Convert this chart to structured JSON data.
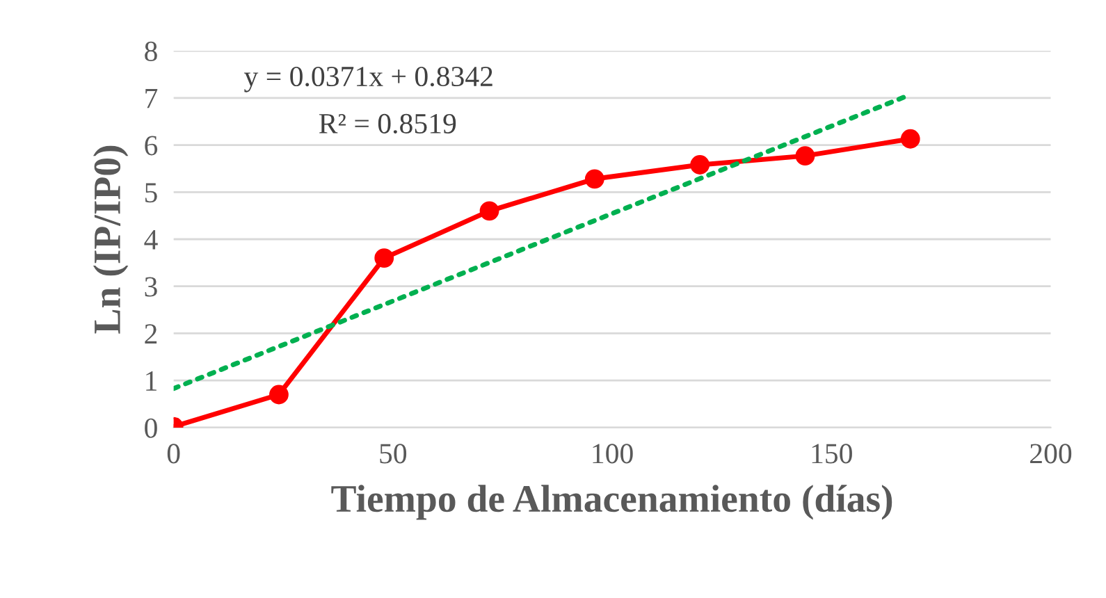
{
  "chart_data": {
    "type": "line",
    "xlabel": "Tiempo de Almacenamiento (días)",
    "ylabel": "Ln (IP/IP0)",
    "xlim": [
      0,
      200
    ],
    "xticks": [
      0,
      50,
      100,
      150,
      200
    ],
    "ylim": [
      0,
      8
    ],
    "yticks": [
      0,
      1,
      2,
      3,
      4,
      5,
      6,
      7,
      8
    ],
    "grid": "y",
    "legend": false,
    "series": [
      {
        "color": "#ff0000",
        "marker": "circle",
        "line_style": "solid",
        "x": [
          0,
          24,
          48,
          72,
          96,
          120,
          144,
          168
        ],
        "values": [
          0.02,
          0.7,
          3.6,
          4.6,
          5.28,
          5.58,
          5.77,
          6.13
        ]
      },
      {
        "color": "#00b050",
        "marker": "none",
        "line_style": "dotted",
        "x": [
          0,
          168
        ],
        "values": [
          0.83,
          7.07
        ]
      }
    ],
    "annotations": [
      "y = 0.0371x + 0.8342",
      "R² = 0.8519"
    ]
  }
}
